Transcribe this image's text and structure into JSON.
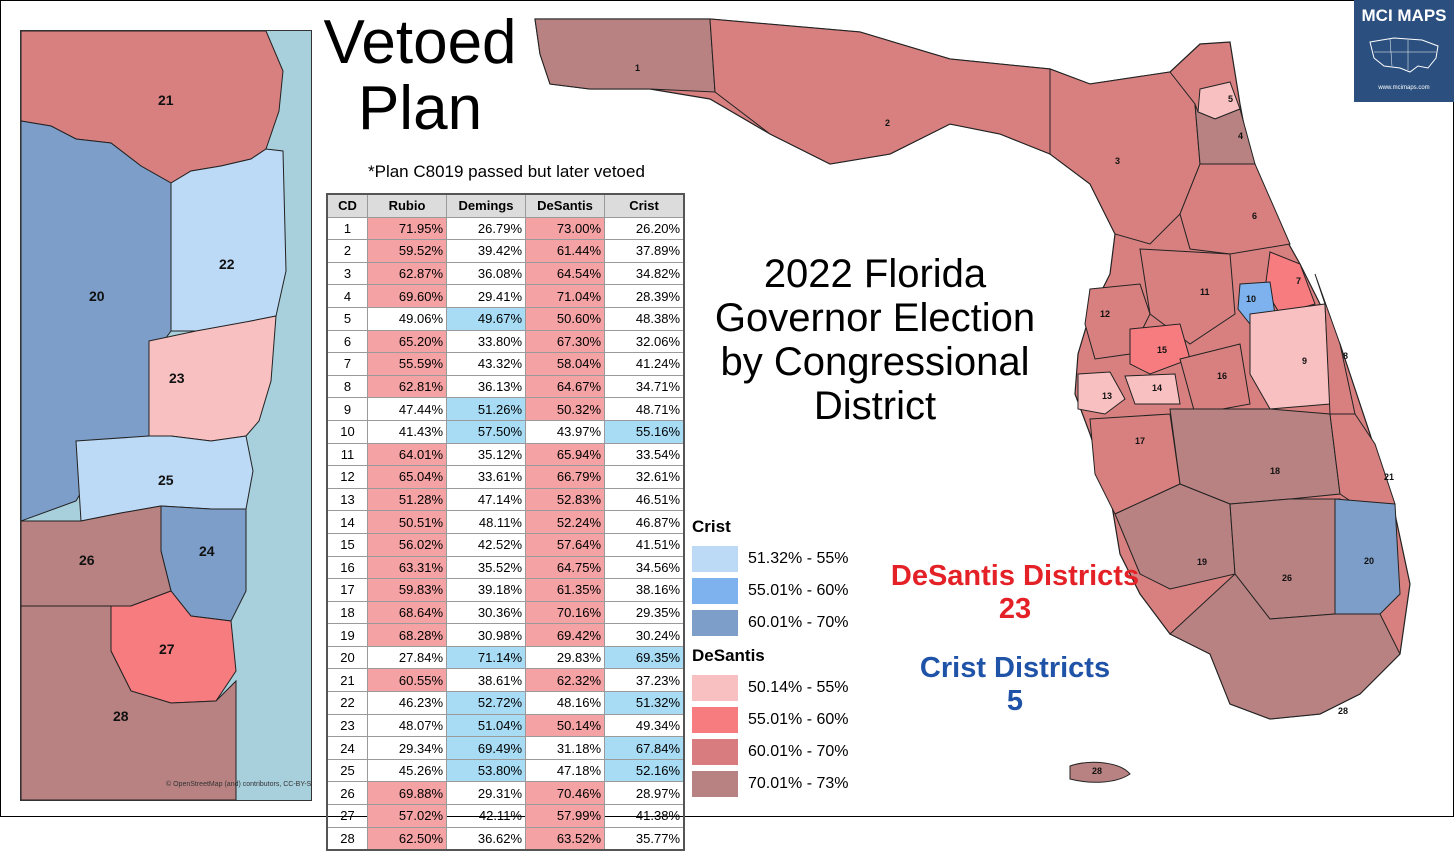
{
  "title_vetoed": "Vetoed Plan",
  "plan_note": "*Plan C8019 passed but later vetoed",
  "main_title_lines": [
    "2022 Florida",
    "Governor Election",
    "by Congressional",
    "District"
  ],
  "table": {
    "headers": [
      "CD",
      "Rubio",
      "Demings",
      "DeSantis",
      "Crist"
    ],
    "rows": [
      {
        "cd": "1",
        "rubio": "71.95%",
        "demings": "26.79%",
        "desantis": "73.00%",
        "crist": "26.20%",
        "sen": "R",
        "gov": "R"
      },
      {
        "cd": "2",
        "rubio": "59.52%",
        "demings": "39.42%",
        "desantis": "61.44%",
        "crist": "37.89%",
        "sen": "R",
        "gov": "R"
      },
      {
        "cd": "3",
        "rubio": "62.87%",
        "demings": "36.08%",
        "desantis": "64.54%",
        "crist": "34.82%",
        "sen": "R",
        "gov": "R"
      },
      {
        "cd": "4",
        "rubio": "69.60%",
        "demings": "29.41%",
        "desantis": "71.04%",
        "crist": "28.39%",
        "sen": "R",
        "gov": "R"
      },
      {
        "cd": "5",
        "rubio": "49.06%",
        "demings": "49.67%",
        "desantis": "50.60%",
        "crist": "48.38%",
        "sen": "D",
        "gov": "R"
      },
      {
        "cd": "6",
        "rubio": "65.20%",
        "demings": "33.80%",
        "desantis": "67.30%",
        "crist": "32.06%",
        "sen": "R",
        "gov": "R"
      },
      {
        "cd": "7",
        "rubio": "55.59%",
        "demings": "43.32%",
        "desantis": "58.04%",
        "crist": "41.24%",
        "sen": "R",
        "gov": "R"
      },
      {
        "cd": "8",
        "rubio": "62.81%",
        "demings": "36.13%",
        "desantis": "64.67%",
        "crist": "34.71%",
        "sen": "R",
        "gov": "R"
      },
      {
        "cd": "9",
        "rubio": "47.44%",
        "demings": "51.26%",
        "desantis": "50.32%",
        "crist": "48.71%",
        "sen": "D",
        "gov": "R"
      },
      {
        "cd": "10",
        "rubio": "41.43%",
        "demings": "57.50%",
        "desantis": "43.97%",
        "crist": "55.16%",
        "sen": "D",
        "gov": "D"
      },
      {
        "cd": "11",
        "rubio": "64.01%",
        "demings": "35.12%",
        "desantis": "65.94%",
        "crist": "33.54%",
        "sen": "R",
        "gov": "R"
      },
      {
        "cd": "12",
        "rubio": "65.04%",
        "demings": "33.61%",
        "desantis": "66.79%",
        "crist": "32.61%",
        "sen": "R",
        "gov": "R"
      },
      {
        "cd": "13",
        "rubio": "51.28%",
        "demings": "47.14%",
        "desantis": "52.83%",
        "crist": "46.51%",
        "sen": "R",
        "gov": "R"
      },
      {
        "cd": "14",
        "rubio": "50.51%",
        "demings": "48.11%",
        "desantis": "52.24%",
        "crist": "46.87%",
        "sen": "R",
        "gov": "R"
      },
      {
        "cd": "15",
        "rubio": "56.02%",
        "demings": "42.52%",
        "desantis": "57.64%",
        "crist": "41.51%",
        "sen": "R",
        "gov": "R"
      },
      {
        "cd": "16",
        "rubio": "63.31%",
        "demings": "35.52%",
        "desantis": "64.75%",
        "crist": "34.56%",
        "sen": "R",
        "gov": "R"
      },
      {
        "cd": "17",
        "rubio": "59.83%",
        "demings": "39.18%",
        "desantis": "61.35%",
        "crist": "38.16%",
        "sen": "R",
        "gov": "R"
      },
      {
        "cd": "18",
        "rubio": "68.64%",
        "demings": "30.36%",
        "desantis": "70.16%",
        "crist": "29.35%",
        "sen": "R",
        "gov": "R"
      },
      {
        "cd": "19",
        "rubio": "68.28%",
        "demings": "30.98%",
        "desantis": "69.42%",
        "crist": "30.24%",
        "sen": "R",
        "gov": "R"
      },
      {
        "cd": "20",
        "rubio": "27.84%",
        "demings": "71.14%",
        "desantis": "29.83%",
        "crist": "69.35%",
        "sen": "D",
        "gov": "D"
      },
      {
        "cd": "21",
        "rubio": "60.55%",
        "demings": "38.61%",
        "desantis": "62.32%",
        "crist": "37.23%",
        "sen": "R",
        "gov": "R"
      },
      {
        "cd": "22",
        "rubio": "46.23%",
        "demings": "52.72%",
        "desantis": "48.16%",
        "crist": "51.32%",
        "sen": "D",
        "gov": "D"
      },
      {
        "cd": "23",
        "rubio": "48.07%",
        "demings": "51.04%",
        "desantis": "50.14%",
        "crist": "49.34%",
        "sen": "D",
        "gov": "R"
      },
      {
        "cd": "24",
        "rubio": "29.34%",
        "demings": "69.49%",
        "desantis": "31.18%",
        "crist": "67.84%",
        "sen": "D",
        "gov": "D"
      },
      {
        "cd": "25",
        "rubio": "45.26%",
        "demings": "53.80%",
        "desantis": "47.18%",
        "crist": "52.16%",
        "sen": "D",
        "gov": "D"
      },
      {
        "cd": "26",
        "rubio": "69.88%",
        "demings": "29.31%",
        "desantis": "70.46%",
        "crist": "28.97%",
        "sen": "R",
        "gov": "R"
      },
      {
        "cd": "27",
        "rubio": "57.02%",
        "demings": "42.11%",
        "desantis": "57.99%",
        "crist": "41.38%",
        "sen": "R",
        "gov": "R"
      },
      {
        "cd": "28",
        "rubio": "62.50%",
        "demings": "36.62%",
        "desantis": "63.52%",
        "crist": "35.77%",
        "sen": "R",
        "gov": "R"
      }
    ]
  },
  "legend": {
    "crist_title": "Crist",
    "crist_bins": [
      {
        "label": "51.32% - 55%",
        "color": "#bcd9f6"
      },
      {
        "label": "55.01% - 60%",
        "color": "#7eb2ee"
      },
      {
        "label": "60.01% - 70%",
        "color": "#7d9ec8"
      }
    ],
    "desantis_title": "DeSantis",
    "desantis_bins": [
      {
        "label": "50.14% - 55%",
        "color": "#f9c0c2"
      },
      {
        "label": "55.01% - 60%",
        "color": "#f77c80"
      },
      {
        "label": "60.01% - 70%",
        "color": "#d97c80"
      },
      {
        "label": "70.01% - 73%",
        "color": "#b98282"
      }
    ]
  },
  "counts": {
    "desantis_label": "DeSantis Districts",
    "desantis_count": "23",
    "desantis_color": "#e32127",
    "crist_label": "Crist Districts",
    "crist_count": "5",
    "crist_color": "#1f53a8"
  },
  "inset_labels": [
    "21",
    "22",
    "20",
    "23",
    "25",
    "24",
    "26",
    "27",
    "28"
  ],
  "map_labels": [
    "1",
    "2",
    "3",
    "4",
    "5",
    "6",
    "7",
    "8",
    "9",
    "10",
    "11",
    "12",
    "13",
    "14",
    "15",
    "16",
    "17",
    "18",
    "19",
    "20",
    "21",
    "26",
    "28",
    "28"
  ],
  "logo": {
    "text": "MCI MAPS",
    "url": "www.mcimaps.com"
  },
  "attribution": "© OpenStreetMap (and) contributors, CC-BY-SA"
}
